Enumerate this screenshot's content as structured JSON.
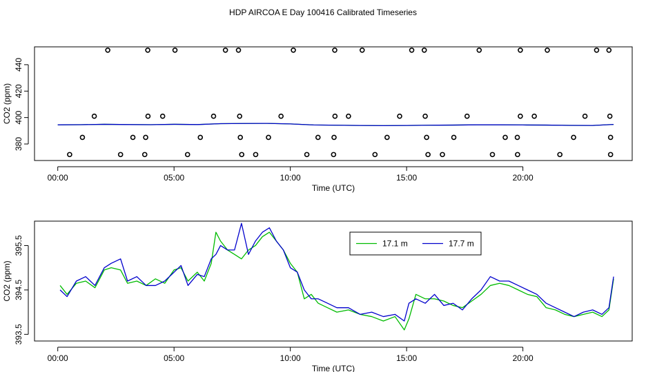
{
  "figure": {
    "title": "HDP AIRCOA E  Day 100416  Calibrated Timeseries"
  },
  "chart_data": [
    {
      "type": "scatter",
      "xlabel": "Time (UTC)",
      "ylabel": "CO2 (ppm)",
      "xlim": [
        -1.0,
        24.7
      ],
      "ylim": [
        367.5,
        453.5
      ],
      "xticks": [
        0,
        5,
        10,
        15,
        20
      ],
      "xtick_labels": [
        "00:00",
        "05:00",
        "10:00",
        "15:00",
        "20:00"
      ],
      "yticks": [
        380,
        400,
        420,
        440
      ],
      "ytick_labels": [
        "380",
        "400",
        "420",
        "440"
      ],
      "grid": false,
      "legend": "none",
      "colors": {
        "line_a": "#00bb00",
        "line_b": "#0000cc",
        "points": "#000000"
      },
      "points": {
        "x": [
          2.15,
          3.87,
          5.04,
          7.21,
          7.77,
          10.13,
          11.91,
          13.09,
          15.22,
          15.76,
          18.12,
          19.89,
          21.05,
          23.17,
          23.7,
          1.57,
          3.88,
          4.51,
          6.7,
          7.82,
          9.6,
          11.92,
          12.5,
          14.7,
          15.8,
          17.6,
          19.89,
          20.49,
          22.67,
          23.74,
          1.06,
          3.23,
          3.78,
          6.13,
          7.85,
          9.06,
          11.19,
          11.88,
          14.16,
          15.86,
          17.03,
          19.24,
          19.76,
          22.18,
          23.77,
          0.51,
          2.7,
          3.74,
          5.58,
          7.91,
          8.51,
          10.71,
          11.86,
          13.64,
          15.92,
          16.54,
          18.69,
          19.77,
          21.59,
          23.77
        ],
        "y": [
          451,
          451,
          451,
          451,
          451,
          451,
          451,
          451,
          451,
          451,
          451,
          451,
          451,
          451,
          451,
          401,
          401,
          401,
          401,
          401,
          401,
          401,
          401,
          401,
          401,
          401,
          401,
          401,
          401,
          401,
          385,
          385,
          385,
          385,
          385,
          385,
          385,
          385,
          385,
          385,
          385,
          385,
          385,
          385,
          385,
          372,
          372,
          372,
          372,
          372,
          372,
          372,
          372,
          372,
          372,
          372,
          372,
          372,
          372,
          372
        ]
      },
      "series": [
        {
          "x": [
            0,
            1,
            2,
            3,
            4,
            5,
            6,
            7,
            8,
            9,
            10,
            11,
            12,
            13,
            14,
            15,
            16,
            17,
            18,
            19,
            20,
            21,
            22,
            23,
            23.9
          ],
          "y": [
            394.5,
            394.6,
            394.9,
            394.7,
            394.6,
            394.9,
            394.7,
            395.4,
            395.5,
            395.6,
            395.2,
            394.4,
            394.2,
            394.0,
            393.9,
            394.0,
            394.2,
            394.3,
            394.5,
            394.5,
            394.4,
            394.3,
            394.1,
            394.0,
            394.8
          ]
        },
        {
          "x": [
            0,
            1,
            2,
            3,
            4,
            5,
            6,
            7,
            8,
            9,
            10,
            11,
            12,
            13,
            14,
            15,
            16,
            17,
            18,
            19,
            20,
            21,
            22,
            23,
            23.9
          ],
          "y": [
            394.5,
            394.6,
            394.9,
            394.7,
            394.6,
            394.9,
            394.7,
            395.4,
            395.5,
            395.6,
            395.2,
            394.4,
            394.2,
            394.0,
            393.9,
            394.0,
            394.2,
            394.3,
            394.5,
            394.5,
            394.4,
            394.3,
            394.1,
            394.0,
            394.8
          ]
        }
      ]
    },
    {
      "type": "line",
      "xlabel": "Time (UTC)",
      "ylabel": "CO2 (ppm)",
      "xlim": [
        -1.0,
        24.7
      ],
      "ylim": [
        393.35,
        396.05
      ],
      "xticks": [
        0,
        5,
        10,
        15,
        20
      ],
      "xtick_labels": [
        "00:00",
        "05:00",
        "10:00",
        "15:00",
        "20:00"
      ],
      "yticks": [
        393.5,
        394.5,
        395.5
      ],
      "ytick_labels": [
        "393.5",
        "394.5",
        "395.5"
      ],
      "grid": false,
      "legend": "top-center",
      "series": [
        {
          "name": "17.1 m",
          "color": "#00bb00",
          "x": [
            0.1,
            0.4,
            0.8,
            1.2,
            1.6,
            2.0,
            2.3,
            2.7,
            3.0,
            3.4,
            3.8,
            4.2,
            4.6,
            5.0,
            5.3,
            5.6,
            6.0,
            6.3,
            6.6,
            6.8,
            7.0,
            7.3,
            7.6,
            7.9,
            8.2,
            8.5,
            8.8,
            9.1,
            9.4,
            9.7,
            10.0,
            10.3,
            10.6,
            10.9,
            11.2,
            11.6,
            12.0,
            12.5,
            13.0,
            13.5,
            14.0,
            14.5,
            14.9,
            15.1,
            15.4,
            15.8,
            16.2,
            16.6,
            17.0,
            17.4,
            17.8,
            18.2,
            18.6,
            19.0,
            19.4,
            19.8,
            20.2,
            20.6,
            21.0,
            21.4,
            21.8,
            22.2,
            22.6,
            23.0,
            23.4,
            23.7,
            23.9
          ],
          "y": [
            394.6,
            394.4,
            394.65,
            394.7,
            394.55,
            394.95,
            395.0,
            394.95,
            394.65,
            394.7,
            394.6,
            394.75,
            394.65,
            394.95,
            395.0,
            394.7,
            394.9,
            394.7,
            395.1,
            395.8,
            395.6,
            395.4,
            395.3,
            395.2,
            395.4,
            395.5,
            395.7,
            395.8,
            395.6,
            395.4,
            395.1,
            394.9,
            394.3,
            394.4,
            394.2,
            394.1,
            394.0,
            394.05,
            393.95,
            393.9,
            393.8,
            393.9,
            393.6,
            393.85,
            394.4,
            394.3,
            394.3,
            394.25,
            394.15,
            394.1,
            394.25,
            394.4,
            394.6,
            394.65,
            394.6,
            394.5,
            394.4,
            394.35,
            394.1,
            394.05,
            393.95,
            393.9,
            393.95,
            394.0,
            393.9,
            394.05,
            394.75
          ]
        },
        {
          "name": "17.7 m",
          "color": "#0000cc",
          "x": [
            0.1,
            0.4,
            0.8,
            1.2,
            1.6,
            2.0,
            2.3,
            2.7,
            3.0,
            3.4,
            3.8,
            4.2,
            4.6,
            5.0,
            5.3,
            5.6,
            6.0,
            6.3,
            6.6,
            6.8,
            7.0,
            7.3,
            7.6,
            7.9,
            8.2,
            8.5,
            8.8,
            9.1,
            9.4,
            9.7,
            10.0,
            10.3,
            10.6,
            10.9,
            11.2,
            11.6,
            12.0,
            12.5,
            13.0,
            13.5,
            14.0,
            14.5,
            14.9,
            15.1,
            15.4,
            15.8,
            16.2,
            16.6,
            17.0,
            17.4,
            17.8,
            18.2,
            18.6,
            19.0,
            19.4,
            19.8,
            20.2,
            20.6,
            21.0,
            21.4,
            21.8,
            22.2,
            22.6,
            23.0,
            23.4,
            23.7,
            23.9
          ],
          "y": [
            394.5,
            394.35,
            394.7,
            394.8,
            394.6,
            395.0,
            395.1,
            395.2,
            394.7,
            394.8,
            394.6,
            394.6,
            394.7,
            394.9,
            395.05,
            394.6,
            394.85,
            394.8,
            395.2,
            395.3,
            395.5,
            395.4,
            395.4,
            396.0,
            395.3,
            395.6,
            395.8,
            395.9,
            395.6,
            395.4,
            395.0,
            394.9,
            394.5,
            394.3,
            394.3,
            394.2,
            394.1,
            394.1,
            393.95,
            394.0,
            393.9,
            393.95,
            393.8,
            394.2,
            394.3,
            394.2,
            394.4,
            394.15,
            394.2,
            394.05,
            394.3,
            394.5,
            394.8,
            394.7,
            394.7,
            394.6,
            394.5,
            394.4,
            394.2,
            394.1,
            394.0,
            393.9,
            394.0,
            394.05,
            393.95,
            394.1,
            394.8
          ]
        }
      ]
    }
  ]
}
